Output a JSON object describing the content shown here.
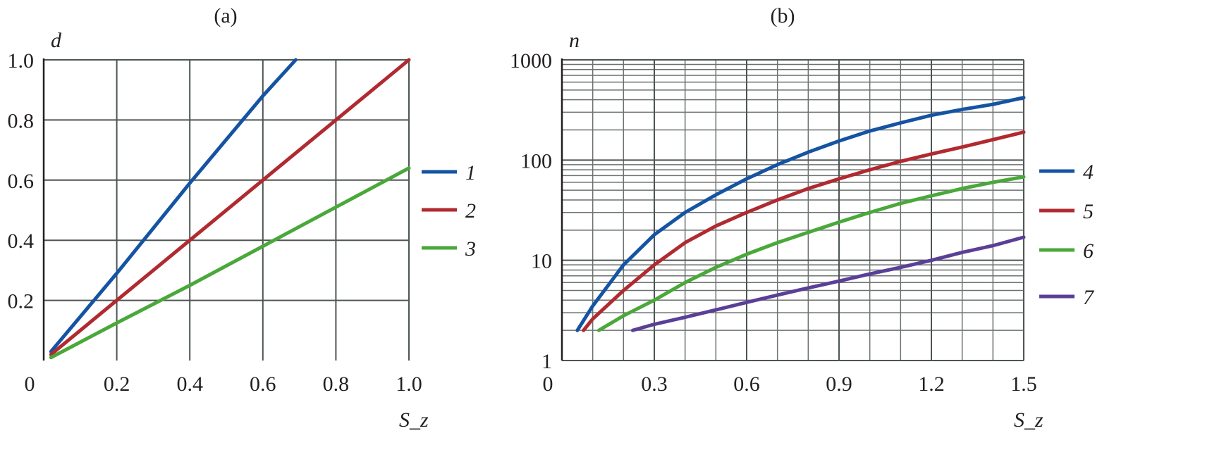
{
  "chart_data": [
    {
      "type": "line",
      "title": "(a)",
      "xlabel": "S_z",
      "ylabel": "d",
      "xlim": [
        0,
        1.0
      ],
      "ylim": [
        0,
        1.0
      ],
      "x_ticks": [
        "0",
        "0.2",
        "0.4",
        "0.6",
        "0.8",
        "1.0"
      ],
      "y_ticks": [
        "0.2",
        "0.4",
        "0.6",
        "0.8",
        "1.0"
      ],
      "grid": true,
      "legend_position": "right",
      "series": [
        {
          "name": "1",
          "color": "#1553a3",
          "x": [
            0.02,
            0.2,
            0.4,
            0.6,
            0.69
          ],
          "y": [
            0.03,
            0.29,
            0.59,
            0.88,
            1.0
          ]
        },
        {
          "name": "2",
          "color": "#b02a30",
          "x": [
            0.02,
            0.2,
            0.4,
            0.6,
            0.8,
            1.0
          ],
          "y": [
            0.02,
            0.2,
            0.4,
            0.6,
            0.8,
            1.0
          ]
        },
        {
          "name": "3",
          "color": "#4aa83a",
          "x": [
            0.02,
            0.2,
            0.4,
            0.6,
            0.8,
            1.0
          ],
          "y": [
            0.01,
            0.125,
            0.25,
            0.38,
            0.51,
            0.64
          ]
        }
      ]
    },
    {
      "type": "line",
      "title": "(b)",
      "xlabel": "S_z",
      "ylabel": "n",
      "xlim": [
        0,
        1.5
      ],
      "ylim": [
        1,
        1000
      ],
      "y_scale": "log",
      "x_ticks": [
        "0",
        "0.3",
        "0.6",
        "0.9",
        "1.2",
        "1.5"
      ],
      "y_ticks": [
        "1",
        "10",
        "100",
        "1000"
      ],
      "grid": true,
      "legend_position": "right",
      "series": [
        {
          "name": "4",
          "color": "#1553a3",
          "x": [
            0.05,
            0.1,
            0.2,
            0.3,
            0.4,
            0.5,
            0.6,
            0.7,
            0.8,
            0.9,
            1.0,
            1.1,
            1.2,
            1.3,
            1.4,
            1.5
          ],
          "y": [
            2,
            3.5,
            9,
            18,
            30,
            45,
            65,
            90,
            120,
            155,
            195,
            235,
            280,
            320,
            360,
            420
          ]
        },
        {
          "name": "5",
          "color": "#b02a30",
          "x": [
            0.07,
            0.1,
            0.2,
            0.3,
            0.4,
            0.5,
            0.6,
            0.7,
            0.8,
            0.9,
            1.0,
            1.1,
            1.2,
            1.3,
            1.4,
            1.5
          ],
          "y": [
            2,
            2.6,
            5,
            9,
            15,
            22,
            30,
            40,
            52,
            65,
            80,
            97,
            115,
            135,
            160,
            190
          ]
        },
        {
          "name": "6",
          "color": "#4aa83a",
          "x": [
            0.12,
            0.2,
            0.3,
            0.4,
            0.5,
            0.6,
            0.7,
            0.8,
            0.9,
            1.0,
            1.1,
            1.2,
            1.3,
            1.4,
            1.5
          ],
          "y": [
            2,
            2.8,
            4,
            6,
            8.5,
            11.5,
            15,
            19,
            24,
            30,
            37,
            44,
            52,
            60,
            68
          ]
        },
        {
          "name": "7",
          "color": "#5a3f98",
          "x": [
            0.23,
            0.3,
            0.4,
            0.5,
            0.6,
            0.7,
            0.8,
            0.9,
            1.0,
            1.1,
            1.2,
            1.3,
            1.4,
            1.5
          ],
          "y": [
            2,
            2.3,
            2.7,
            3.2,
            3.8,
            4.5,
            5.3,
            6.2,
            7.3,
            8.5,
            10,
            12,
            14,
            17
          ]
        }
      ]
    }
  ]
}
